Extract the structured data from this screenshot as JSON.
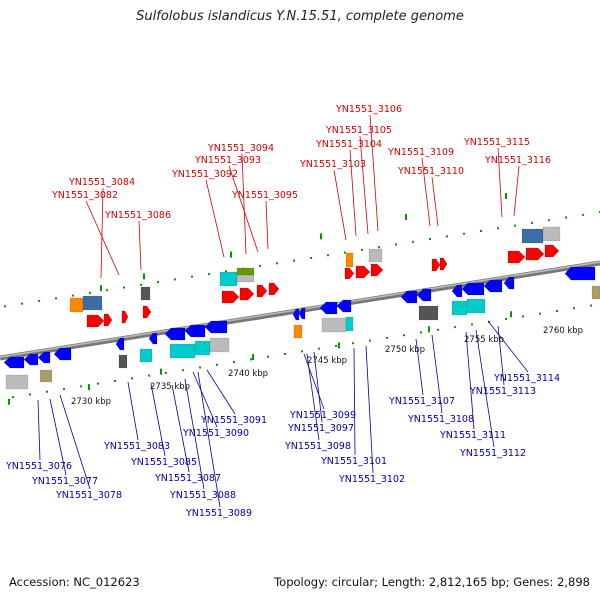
{
  "title": "Sulfolobus islandicus Y.N.15.51, complete genome",
  "footer": {
    "accession": "Accession: NC_012623",
    "summary": "Topology: circular; Length: 2,812,165 bp; Genes: 2,898"
  },
  "scale_labels": [
    "2730 kbp",
    "2735 kbp",
    "2740 kbp",
    "2745 kbp",
    "2750 kbp",
    "2755 kbp",
    "2760 kbp"
  ],
  "genes_forward": [
    "YN1551_3106",
    "YN1551_3105",
    "YN1551_3104",
    "YN1551_3094",
    "YN1551_3093",
    "YN1551_3103",
    "YN1551_3109",
    "YN1551_3115",
    "YN1551_3116",
    "YN1551_3110",
    "YN1551_3092",
    "YN1551_3084",
    "YN1551_3082",
    "YN1551_3095",
    "YN1551_3086"
  ],
  "genes_reverse": [
    "YN1551_3114",
    "YN1551_3113",
    "YN1551_3107",
    "YN1551_3108",
    "YN1551_3111",
    "YN1551_3112",
    "YN1551_3091",
    "YN1551_3090",
    "YN1551_3099",
    "YN1551_3097",
    "YN1551_3098",
    "YN1551_3083",
    "YN1551_3101",
    "YN1551_3085",
    "YN1551_3087",
    "YN1551_3102",
    "YN1551_3076",
    "YN1551_3077",
    "YN1551_3088",
    "YN1551_3078",
    "YN1551_3089"
  ],
  "colors": {
    "forward": "#ff0000",
    "reverse": "#0000ff",
    "backbone": "#888888",
    "label_forward": "#d40000",
    "label_reverse": "#0000aa",
    "tick": "#009900"
  }
}
